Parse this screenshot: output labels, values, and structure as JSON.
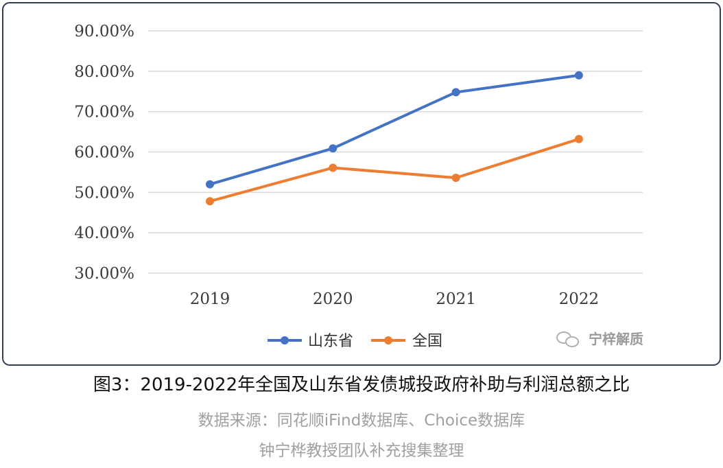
{
  "chart_data": {
    "type": "line",
    "categories": [
      "2019",
      "2020",
      "2021",
      "2022"
    ],
    "series": [
      {
        "name": "山东省",
        "values": [
          52.0,
          60.9,
          74.8,
          79.0
        ],
        "color": "#4472C4"
      },
      {
        "name": "全国",
        "values": [
          47.8,
          56.1,
          53.6,
          63.2
        ],
        "color": "#ED7D31"
      }
    ],
    "ylim": [
      30,
      90
    ],
    "yticks": [
      "90.00%",
      "80.00%",
      "70.00%",
      "60.00%",
      "50.00%",
      "40.00%",
      "30.00%"
    ],
    "ytick_values": [
      90,
      80,
      70,
      60,
      50,
      40,
      30
    ],
    "legend_position": "bottom",
    "grid": true
  },
  "watermark": {
    "text": "宁梓解质"
  },
  "caption": "图3：2019-2022年全国及山东省发债城投政府补助与利润总额之比",
  "source": "数据来源：同花顺iFind数据库、Choice数据库",
  "compiler": "钟宁桦教授团队补充搜集整理"
}
